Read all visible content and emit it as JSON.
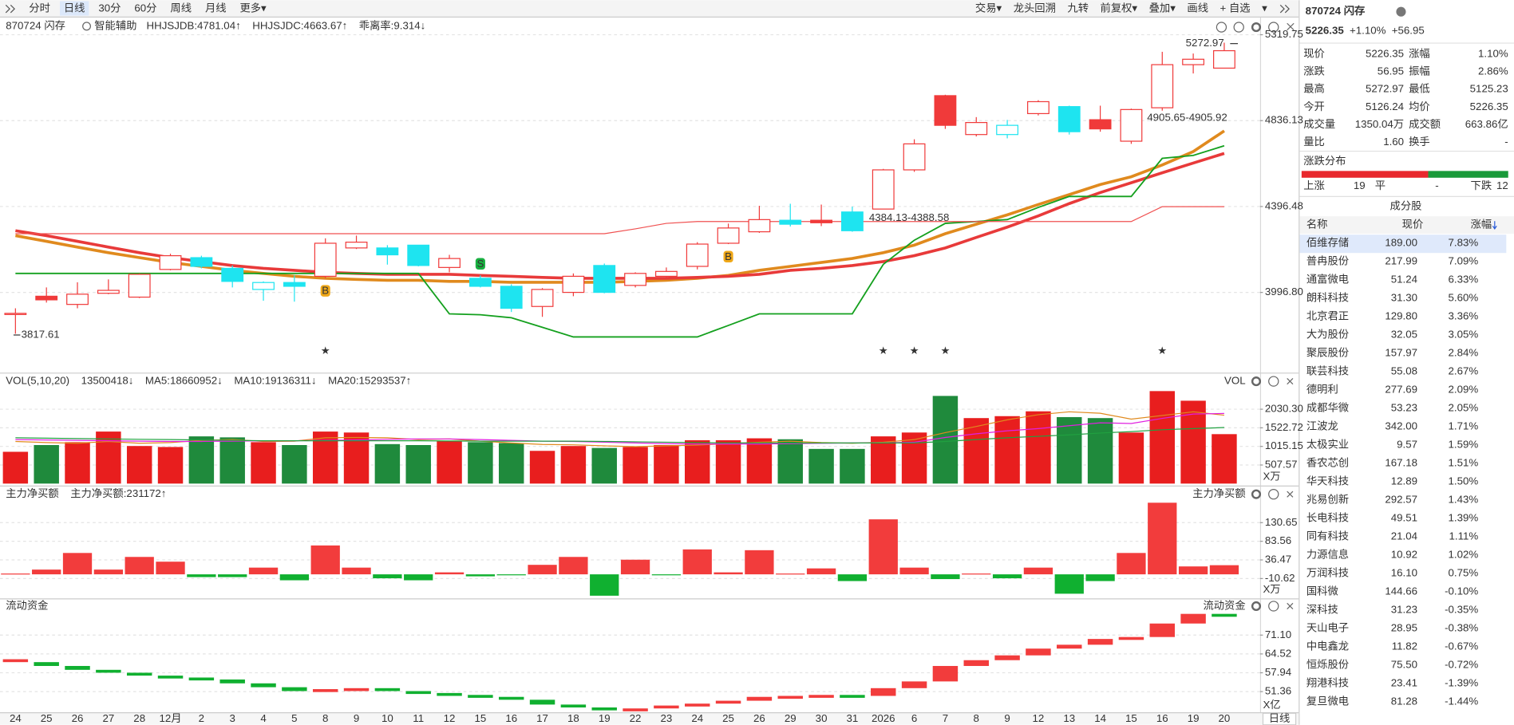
{
  "toolbar": {
    "left": [
      "分时",
      "日线",
      "30分",
      "60分",
      "周线",
      "月线",
      "更多▾"
    ],
    "right": [
      "交易▾",
      "龙头回溯",
      "九转",
      "前复权▾",
      "叠加▾",
      "画线",
      "+ 自选",
      "▾"
    ]
  },
  "footer_label": "日线",
  "chart_data": [
    {
      "type": "candlestick",
      "title": "870724 闪存",
      "subtitle": "智能辅助",
      "categories": [
        "24",
        "25",
        "26",
        "27",
        "28",
        "12月",
        "2",
        "3",
        "4",
        "5",
        "8",
        "9",
        "10",
        "11",
        "12",
        "15",
        "16",
        "17",
        "18",
        "19",
        "22",
        "23",
        "24",
        "25",
        "26",
        "29",
        "30",
        "31",
        "2026",
        "6",
        "7",
        "8",
        "9",
        "12",
        "13",
        "14",
        "15",
        "16",
        "19",
        "20"
      ],
      "open": [
        3900,
        3980,
        3944,
        3993,
        3976,
        4100,
        4154,
        4105,
        4010,
        4041,
        4069,
        4199,
        4199,
        4212,
        4109,
        4060,
        4024,
        3935,
        3997,
        4118,
        4028,
        4069,
        4114,
        4221,
        4275,
        4330,
        4330,
        4370,
        4384.13,
        4579,
        4972,
        4762,
        4762,
        4874,
        4912,
        4841,
        4727,
        4905.65,
        5146,
        5126.24
      ],
      "high": [
        3927,
        4019,
        4042,
        4055,
        4082,
        4172,
        4163,
        4118,
        4046,
        4073,
        4244,
        4257,
        4212,
        4212,
        4167,
        4073,
        4033,
        4016,
        4082,
        4127,
        4087,
        4109,
        4226,
        4314,
        4400,
        4410,
        4406,
        4396,
        4584,
        4737,
        4977,
        4855,
        4840,
        4947,
        4917,
        4917,
        4901,
        5220,
        5210,
        5272.97
      ],
      "low": [
        3817.61,
        3952,
        3927,
        3989,
        3972,
        4096,
        4105,
        4019,
        3960,
        3956,
        4060,
        4194,
        4122,
        4114,
        4087,
        4019,
        3911,
        3890,
        3980,
        3993,
        4019,
        4064,
        4100,
        4217,
        4270,
        4300,
        4302,
        4275,
        4384,
        4569,
        4792,
        4752,
        4742,
        4864,
        4762,
        4777,
        4713,
        4890,
        5096,
        5125.23
      ],
      "close": [
        3905,
        3964,
        3989,
        4006,
        4078,
        4163,
        4114,
        4046,
        4041,
        4024,
        4221,
        4226,
        4167,
        4118,
        4150,
        4024,
        3927,
        4010,
        4069,
        3997,
        4082,
        4091,
        4217,
        4293,
        4333,
        4311,
        4318,
        4280,
        4579,
        4713,
        4811,
        4826,
        4811,
        4939,
        4777,
        4792,
        4896,
        5146,
        5177,
        5226.35
      ],
      "up_color": "#f03a3a",
      "down_color": "#1ee4f0",
      "log_scale": true,
      "grid": true,
      "ylim": [
        3680,
        5353
      ],
      "yticks": [
        {
          "value": 3996.8,
          "label": "3996.80"
        },
        4396.48,
        4836.13,
        5319.75
      ],
      "legend": [
        {
          "text": "HHJSJDB:4781.04↑",
          "color": "#e08a1e"
        },
        {
          "text": "HHJSJDC:4663.67↑",
          "color": "#e83a3a"
        },
        {
          "text": "乖离率:9.314↓",
          "color": "#e8961e"
        }
      ],
      "series": [
        {
          "color": "#e08a1e",
          "width": 3,
          "values": [
            4257,
            4230,
            4203,
            4177,
            4154,
            4132,
            4114,
            4096,
            4082,
            4069,
            4060,
            4055,
            4051,
            4051,
            4046,
            4046,
            4042,
            4042,
            4042,
            4042,
            4046,
            4051,
            4060,
            4073,
            4096,
            4114,
            4132,
            4150,
            4177,
            4212,
            4266,
            4311,
            4356,
            4406,
            4455,
            4505,
            4544,
            4604,
            4673,
            4781.04
          ]
        },
        {
          "color": "#e83a3a",
          "width": 3,
          "values": [
            4280,
            4257,
            4230,
            4203,
            4177,
            4154,
            4136,
            4118,
            4105,
            4096,
            4087,
            4082,
            4078,
            4078,
            4078,
            4073,
            4069,
            4064,
            4060,
            4060,
            4060,
            4060,
            4064,
            4069,
            4078,
            4096,
            4105,
            4118,
            4136,
            4163,
            4199,
            4248,
            4297,
            4351,
            4411,
            4465,
            4514,
            4564,
            4614,
            4663.67
          ]
        },
        {
          "color": "#14a01e",
          "width": 1.5,
          "values": [
            4082,
            4082,
            4082,
            4082,
            4082,
            4082,
            4082,
            4082,
            4082,
            4082,
            4082,
            4082,
            4082,
            4082,
            3903,
            3899,
            3886,
            3845,
            3804,
            3804,
            3804,
            3804,
            3804,
            3853,
            3903,
            3903,
            3903,
            3903,
            4123,
            4235,
            4315,
            4324,
            4333,
            4392,
            4446,
            4446,
            4446,
            4638,
            4653,
            4703
          ]
        },
        {
          "color": "#f05050",
          "width": 1,
          "values": [
            4266,
            4266,
            4266,
            4266,
            4266,
            4266,
            4266,
            4266,
            4266,
            4266,
            4266,
            4266,
            4266,
            4266,
            4266,
            4266,
            4266,
            4266,
            4266,
            4266,
            4289,
            4315,
            4324,
            4324,
            4324,
            4324,
            4324,
            4324,
            4324,
            4324,
            4324,
            4324,
            4324,
            4324,
            4324,
            4324,
            4324,
            4396,
            4396,
            4396
          ]
        }
      ],
      "signals": [
        null,
        null,
        null,
        null,
        null,
        null,
        null,
        null,
        null,
        null,
        "B",
        null,
        null,
        null,
        null,
        "S",
        null,
        null,
        null,
        null,
        null,
        null,
        null,
        "B",
        null,
        null,
        null,
        null,
        null,
        null,
        null,
        null,
        null,
        null,
        null,
        null,
        null,
        null,
        null,
        null
      ],
      "stars": [
        null,
        null,
        null,
        null,
        null,
        null,
        null,
        null,
        null,
        null,
        "★",
        null,
        null,
        null,
        null,
        null,
        null,
        null,
        null,
        null,
        null,
        null,
        null,
        null,
        null,
        null,
        null,
        null,
        "★",
        "★",
        "★",
        null,
        null,
        null,
        null,
        null,
        null,
        "★",
        null,
        null
      ],
      "annotations": [
        "5272.97",
        "3817.61",
        "4384.13-4388.58",
        "4905.65-4905.92"
      ]
    },
    {
      "type": "volume",
      "unit": "X万",
      "corner_label": "VOL",
      "up_color": "#e81e1e",
      "down_color": "#1f8a3c",
      "grid": true,
      "ylim": [
        0,
        2660
      ],
      "yticks": [
        {
          "value": 507.57,
          "label": "507.57"
        },
        1015.15,
        1522.72,
        {
          "value": 2030.3,
          "label": "2030.30"
        }
      ],
      "legend": [
        {
          "text": "VOL(5,10,20)",
          "color": "#333333"
        },
        {
          "text": "13500418↓",
          "color": "#333333"
        },
        {
          "text": "MA5:18660952↓",
          "color": "#e08a1e"
        },
        {
          "text": "MA10:19136311↓",
          "color": "#e020e0"
        },
        {
          "text": "MA20:15293537↑",
          "color": "#20a040"
        }
      ],
      "values": [
        868,
        1052,
        1131,
        1420,
        1026,
        999,
        1289,
        1262,
        1131,
        1052,
        1420,
        1394,
        1078,
        1052,
        1157,
        1131,
        1105,
        894,
        1026,
        973,
        999,
        1052,
        1184,
        1184,
        1236,
        1210,
        947,
        947,
        1289,
        1394,
        2393,
        1788,
        1841,
        1973,
        1815,
        1788,
        1394,
        2525,
        2262,
        1350.04
      ],
      "series": [
        {
          "color": "#e08a1e",
          "width": 1,
          "values": [
            1150,
            1120,
            1100,
            1150,
            1100,
            1120,
            1180,
            1200,
            1150,
            1160,
            1250,
            1260,
            1250,
            1200,
            1220,
            1160,
            1110,
            1070,
            1060,
            1030,
            1010,
            1030,
            1050,
            1090,
            1130,
            1160,
            1120,
            1100,
            1130,
            1200,
            1390,
            1560,
            1740,
            1880,
            1960,
            1920,
            1760,
            1860,
            1960,
            1866.0952
          ]
        },
        {
          "color": "#e020e0",
          "width": 1,
          "values": [
            1200,
            1190,
            1180,
            1170,
            1160,
            1150,
            1150,
            1160,
            1170,
            1170,
            1180,
            1190,
            1210,
            1220,
            1220,
            1200,
            1180,
            1160,
            1150,
            1130,
            1110,
            1090,
            1080,
            1080,
            1080,
            1090,
            1100,
            1110,
            1110,
            1130,
            1260,
            1360,
            1440,
            1500,
            1580,
            1660,
            1640,
            1780,
            1900,
            1913.6311
          ]
        },
        {
          "color": "#20a040",
          "width": 1,
          "values": [
            1250,
            1240,
            1230,
            1220,
            1210,
            1200,
            1190,
            1180,
            1170,
            1170,
            1170,
            1170,
            1170,
            1170,
            1165,
            1160,
            1160,
            1160,
            1160,
            1150,
            1140,
            1130,
            1120,
            1110,
            1110,
            1110,
            1110,
            1110,
            1110,
            1110,
            1150,
            1200,
            1250,
            1290,
            1330,
            1380,
            1420,
            1470,
            1500,
            1529.3537
          ]
        }
      ]
    },
    {
      "type": "bar",
      "unit": "X万",
      "corner_label": "主力净买额",
      "up_color": "#f23c3c",
      "down_color": "#10b030",
      "grid": true,
      "ylim": [
        -56,
        183
      ],
      "yticks": [
        -10.62,
        36.47,
        83.56,
        130.65
      ],
      "legend": [
        {
          "text": "主力净买额",
          "color": "#333333"
        },
        {
          "text": "主力净买额:231172↑",
          "color": "#e02020"
        }
      ],
      "values": [
        2,
        12,
        54,
        12,
        44,
        32,
        -7,
        -7,
        17,
        -15,
        73,
        17,
        -10,
        -15,
        5,
        -5,
        -2,
        24,
        44,
        -54,
        37,
        -2,
        63,
        5,
        61,
        2,
        15,
        -17,
        139,
        17,
        -12,
        2,
        -10,
        17,
        -49,
        -17,
        54,
        181,
        20,
        23.1172
      ]
    },
    {
      "type": "waterfall",
      "unit": "X亿",
      "corner_label": "流动资金",
      "up_color": "#f23c3c",
      "down_color": "#10b030",
      "grid": true,
      "ylim": [
        43.47,
        83.23
      ],
      "yticks": [
        51.36,
        57.94,
        64.52,
        {
          "value": 71.1,
          "label": "71.10"
        }
      ],
      "legend": [
        {
          "text": "流动资金",
          "color": "#333333"
        }
      ],
      "values": [
        61.66,
        60.32,
        58.97,
        57.96,
        56.95,
        56.28,
        55.6,
        54.25,
        52.9,
        51.55,
        52.23,
        52.57,
        51.55,
        50.88,
        50.21,
        49.53,
        48.52,
        46.84,
        45.83,
        45.15,
        45.49,
        46.5,
        47.17,
        48.18,
        49.53,
        49.87,
        50.21,
        49.87,
        52.57,
        54.92,
        60.32,
        62.34,
        64.02,
        66.38,
        67.73,
        69.75,
        70.43,
        75.14,
        78.51,
        77.84
      ]
    }
  ],
  "quote": {
    "code_name": "870724 闪存",
    "price": "5226.35",
    "change_pct": "+1.10%",
    "change": "+56.95",
    "fields": [
      [
        "现价",
        "5226.35",
        "涨幅",
        "1.10%"
      ],
      [
        "涨跌",
        "56.95",
        "振幅",
        "2.86%"
      ],
      [
        "最高",
        "5272.97",
        "最低",
        "5125.23"
      ],
      [
        "今开",
        "5126.24",
        "均价",
        "5226.35"
      ],
      [
        "成交量",
        "1350.04万",
        "成交额",
        "663.86亿"
      ],
      [
        "量比",
        "1.60",
        "换手",
        "-"
      ]
    ],
    "distribution": {
      "title": "涨跌分布",
      "up_label": "上涨",
      "up": 19,
      "flat_label": "平",
      "flat": "-",
      "down_label": "下跌",
      "down": 12
    },
    "constituents": {
      "title": "成分股",
      "columns": [
        "名称",
        "现价",
        "涨幅"
      ],
      "rows": [
        {
          "name": "佰维存储",
          "price": "189.00",
          "change": "7.83%"
        },
        {
          "name": "普冉股份",
          "price": "217.99",
          "change": "7.09%"
        },
        {
          "name": "通富微电",
          "price": "51.24",
          "change": "6.33%",
          "color": "#2a5bd7"
        },
        {
          "name": "朗科科技",
          "price": "31.30",
          "change": "5.60%"
        },
        {
          "name": "北京君正",
          "price": "129.80",
          "change": "3.36%"
        },
        {
          "name": "大为股份",
          "price": "32.05",
          "change": "3.05%"
        },
        {
          "name": "聚辰股份",
          "price": "157.97",
          "change": "2.84%"
        },
        {
          "name": "联芸科技",
          "price": "55.08",
          "change": "2.67%"
        },
        {
          "name": "德明利",
          "price": "277.69",
          "change": "2.09%",
          "color": "#2a5bd7"
        },
        {
          "name": "成都华微",
          "price": "53.23",
          "change": "2.05%"
        },
        {
          "name": "江波龙",
          "price": "342.00",
          "change": "1.71%"
        },
        {
          "name": "太极实业",
          "price": "9.57",
          "change": "1.59%"
        },
        {
          "name": "香农芯创",
          "price": "167.18",
          "change": "1.51%",
          "color": "#2a5bd7"
        },
        {
          "name": "华天科技",
          "price": "12.89",
          "change": "1.50%"
        },
        {
          "name": "兆易创新",
          "price": "292.57",
          "change": "1.43%"
        },
        {
          "name": "长电科技",
          "price": "49.51",
          "change": "1.39%",
          "color": "#2a5bd7"
        },
        {
          "name": "同有科技",
          "price": "21.04",
          "change": "1.11%"
        },
        {
          "name": "力源信息",
          "price": "10.92",
          "change": "1.02%"
        },
        {
          "name": "万润科技",
          "price": "16.10",
          "change": "0.75%"
        },
        {
          "name": "国科微",
          "price": "144.66",
          "change": "-0.10%"
        },
        {
          "name": "深科技",
          "price": "31.23",
          "change": "-0.35%"
        },
        {
          "name": "天山电子",
          "price": "28.95",
          "change": "-0.38%"
        },
        {
          "name": "中电鑫龙",
          "price": "11.82",
          "change": "-0.67%"
        },
        {
          "name": "恒烁股份",
          "price": "75.50",
          "change": "-0.72%"
        },
        {
          "name": "翔港科技",
          "price": "23.41",
          "change": "-1.39%"
        },
        {
          "name": "复旦微电",
          "price": "81.28",
          "change": "-1.44%"
        }
      ]
    }
  }
}
